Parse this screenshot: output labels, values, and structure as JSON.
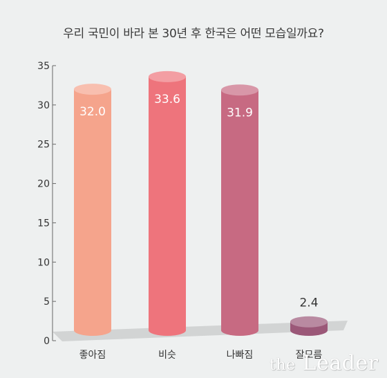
{
  "title": "우리 국민이 바라 본 30년 후 한국은 어떤 모습일까요?",
  "watermark": {
    "the": "the",
    "leader": "Leader"
  },
  "chart_data": {
    "type": "bar",
    "title": "우리 국민이 바라 본 30년 후 한국은 어떤 모습일까요?",
    "xlabel": "",
    "ylabel": "",
    "categories": [
      "좋아짐",
      "비슷",
      "나빠짐",
      "잘모름"
    ],
    "values": [
      32.0,
      33.6,
      31.9,
      2.4
    ],
    "value_labels": [
      "32.0",
      "33.6",
      "31.9",
      "2.4"
    ],
    "ylim": [
      0,
      35
    ],
    "yticks": [
      "0",
      "5",
      "10",
      "15",
      "20",
      "25",
      "30",
      "35"
    ],
    "grid": false,
    "bar_style": "3d-cylinder",
    "colors": [
      "#f5a48c",
      "#ee747c",
      "#c76a82",
      "#9b5878"
    ]
  }
}
